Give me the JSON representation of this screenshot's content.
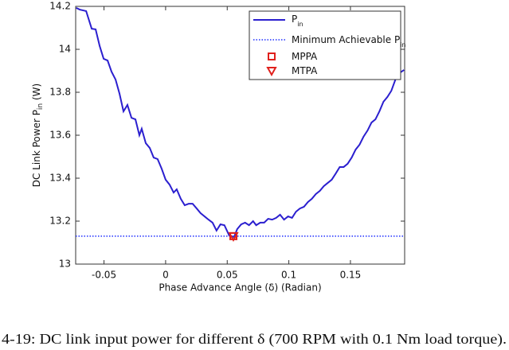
{
  "chart_data": {
    "type": "line",
    "xlabel": "Phase Advance Angle (δ) (Radian)",
    "ylabel": [
      "DC Link Power P",
      "in",
      " (W)"
    ],
    "xlim": [
      -0.073,
      0.194
    ],
    "ylim": [
      13,
      14.2
    ],
    "xticks": [
      -0.05,
      0,
      0.05,
      0.1,
      0.15
    ],
    "yticks": [
      13,
      13.2,
      13.4,
      13.6,
      13.8,
      14,
      14.2
    ],
    "legend": "upper right",
    "series": [
      {
        "name": [
          "P",
          "in"
        ],
        "color": "#2b1fcf",
        "line": "solid",
        "x": [
          -0.0726,
          -0.0697,
          -0.0645,
          -0.06,
          -0.0568,
          -0.0535,
          -0.0503,
          -0.0471,
          -0.0439,
          -0.0406,
          -0.0374,
          -0.0342,
          -0.031,
          -0.0277,
          -0.0245,
          -0.0213,
          -0.0194,
          -0.0161,
          -0.0129,
          -0.0097,
          -0.0065,
          -0.0032,
          0,
          0.0032,
          0.0065,
          0.009,
          0.0123,
          0.0155,
          0.0187,
          0.0219,
          0.0252,
          0.0284,
          0.0316,
          0.0348,
          0.0381,
          0.0413,
          0.0445,
          0.0477,
          0.0516,
          0.0555,
          0.0581,
          0.0613,
          0.0645,
          0.0677,
          0.071,
          0.0735,
          0.0768,
          0.08,
          0.0832,
          0.0865,
          0.0897,
          0.0929,
          0.0961,
          0.0994,
          0.1026,
          0.1058,
          0.109,
          0.1123,
          0.1155,
          0.1187,
          0.1219,
          0.1252,
          0.1284,
          0.1316,
          0.1348,
          0.1381,
          0.1413,
          0.1445,
          0.1477,
          0.151,
          0.1542,
          0.1574,
          0.1606,
          0.1639,
          0.1671,
          0.1703,
          0.1735,
          0.1768,
          0.18,
          0.1832,
          0.1865,
          0.1897,
          0.1935
        ],
        "values": [
          14.193,
          14.185,
          14.178,
          14.096,
          14.093,
          14.015,
          13.956,
          13.948,
          13.896,
          13.859,
          13.793,
          13.711,
          13.741,
          13.681,
          13.674,
          13.6,
          13.63,
          13.563,
          13.541,
          13.496,
          13.489,
          13.444,
          13.393,
          13.37,
          13.333,
          13.348,
          13.304,
          13.274,
          13.281,
          13.281,
          13.259,
          13.237,
          13.222,
          13.207,
          13.193,
          13.156,
          13.185,
          13.181,
          13.133,
          13.126,
          13.163,
          13.185,
          13.193,
          13.181,
          13.2,
          13.181,
          13.193,
          13.193,
          13.211,
          13.207,
          13.215,
          13.23,
          13.207,
          13.222,
          13.215,
          13.244,
          13.259,
          13.267,
          13.289,
          13.304,
          13.326,
          13.341,
          13.363,
          13.378,
          13.393,
          13.422,
          13.452,
          13.452,
          13.467,
          13.496,
          13.533,
          13.556,
          13.593,
          13.622,
          13.659,
          13.674,
          13.711,
          13.756,
          13.778,
          13.807,
          13.859,
          13.889,
          13.904
        ]
      },
      {
        "name": [
          "Minimum Achievable P",
          "in"
        ],
        "color": "#1f2fff",
        "line": "horizontal-dotted",
        "values": [
          13.13
        ]
      },
      {
        "name": [
          "MPPA"
        ],
        "color": "#e0201c",
        "marker": "square",
        "x": [
          0.055
        ],
        "values": [
          13.13
        ]
      },
      {
        "name": [
          "MTPA"
        ],
        "color": "#e0201c",
        "marker": "triangle-down",
        "x": [
          0.055
        ],
        "values": [
          13.13
        ]
      }
    ]
  },
  "caption": "4-19: DC link input power for different δ (700 RPM with 0.1 Nm load torque)."
}
